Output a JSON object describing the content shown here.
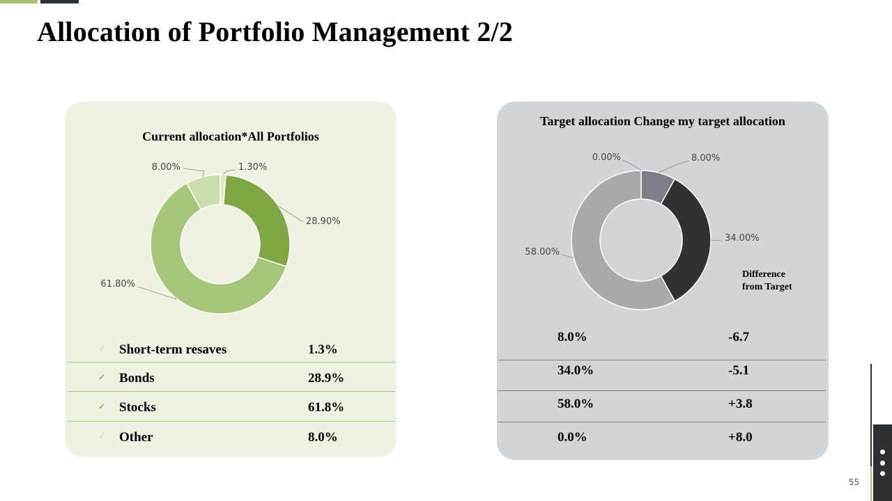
{
  "title": "Allocation of Portfolio Management 2/2",
  "page_number": "55",
  "colors": {
    "accent_green": "#a9c46f",
    "dark": "#2e3134",
    "left_panel_bg": "#eef2e3",
    "right_panel_bg": "#d2d5d8"
  },
  "chart_data": [
    {
      "type": "pie",
      "variant": "donut",
      "title": "Current allocation*All Portfolios",
      "categories": [
        "Short-term resaves",
        "Bonds",
        "Stocks",
        "Other"
      ],
      "values": [
        1.3,
        28.9,
        61.8,
        8.0
      ],
      "labels": [
        "1.30%",
        "28.90%",
        "61.80%",
        "8.00%"
      ],
      "colors": [
        "#dfe8cc",
        "#80a643",
        "#a6c576",
        "#ccdcac"
      ]
    },
    {
      "type": "pie",
      "variant": "donut",
      "title": "Target allocation Change my target allocation",
      "categories": [
        "Short-term resaves",
        "Bonds",
        "Stocks",
        "Other"
      ],
      "values": [
        8.0,
        34.0,
        58.0,
        0.0
      ],
      "labels": [
        "8.00%",
        "34.00%",
        "58.00%",
        "0.00%"
      ],
      "colors": [
        "#7b8086",
        "#2f3235",
        "#a6a9ae",
        "#c3c6ca"
      ]
    }
  ],
  "current_list": [
    {
      "name": "Short-term resaves",
      "value": "1.3%"
    },
    {
      "name": "Bonds",
      "value": "28.9%"
    },
    {
      "name": "Stocks",
      "value": "61.8%"
    },
    {
      "name": "Other",
      "value": "8.0%"
    }
  ],
  "target_table": {
    "difference_label_line1": "Difference",
    "difference_label_line2": "from Target",
    "rows": [
      {
        "target": "8.0%",
        "difference": "-6.7"
      },
      {
        "target": "34.0%",
        "difference": "-5.1"
      },
      {
        "target": "58.0%",
        "difference": "+3.8"
      },
      {
        "target": "0.0%",
        "difference": "+8.0"
      }
    ]
  }
}
